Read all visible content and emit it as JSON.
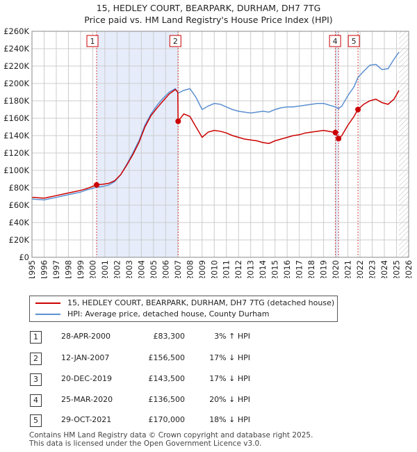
{
  "title_line1": "15, HEDLEY COURT, BEARPARK, DURHAM, DH7 7TG",
  "title_line2": "Price paid vs. HM Land Registry's House Price Index (HPI)",
  "chart_data": {
    "type": "line",
    "title": "15, HEDLEY COURT, BEARPARK, DURHAM, DH7 7TG",
    "subtitle": "Price paid vs. HM Land Registry's House Price Index (HPI)",
    "xlabel": "",
    "ylabel": "",
    "xlim": [
      1995,
      2026
    ],
    "ylim": [
      0,
      260000
    ],
    "x_ticks": [
      "1995",
      "1996",
      "1997",
      "1998",
      "1999",
      "2000",
      "2001",
      "2002",
      "2003",
      "2004",
      "2005",
      "2006",
      "2007",
      "2008",
      "2009",
      "2010",
      "2011",
      "2012",
      "2013",
      "2014",
      "2015",
      "2016",
      "2017",
      "2018",
      "2019",
      "2020",
      "2021",
      "2022",
      "2023",
      "2024",
      "2025",
      "2026"
    ],
    "y_ticks": [
      "£0",
      "£20K",
      "£40K",
      "£60K",
      "£80K",
      "£100K",
      "£120K",
      "£140K",
      "£160K",
      "£180K",
      "£200K",
      "£220K",
      "£240K",
      "£260K"
    ],
    "colors": {
      "property": "#cc0000",
      "hpi": "#5b8fd0",
      "shade": "#e6ecfa",
      "grid": "#cccccc",
      "vline": "#d04040"
    },
    "shaded_periods": [
      [
        2000.32,
        2007.03
      ],
      [
        2019.97,
        2020.23
      ]
    ],
    "future_hatch_from": 2025.2,
    "series": [
      {
        "name": "15, HEDLEY COURT, BEARPARK, DURHAM, DH7 7TG (detached house)",
        "points": [
          [
            1995.0,
            69000
          ],
          [
            1995.5,
            68500
          ],
          [
            1996.0,
            68000
          ],
          [
            1996.5,
            69500
          ],
          [
            1997.0,
            71000
          ],
          [
            1997.5,
            72500
          ],
          [
            1998.0,
            74000
          ],
          [
            1998.5,
            75500
          ],
          [
            1999.0,
            77000
          ],
          [
            1999.5,
            79000
          ],
          [
            2000.32,
            83300
          ],
          [
            2000.8,
            84000
          ],
          [
            2001.3,
            85000
          ],
          [
            2001.8,
            88000
          ],
          [
            2002.3,
            95000
          ],
          [
            2002.8,
            106000
          ],
          [
            2003.3,
            118000
          ],
          [
            2003.8,
            132000
          ],
          [
            2004.3,
            150000
          ],
          [
            2004.8,
            163000
          ],
          [
            2005.3,
            172000
          ],
          [
            2005.8,
            180000
          ],
          [
            2006.3,
            188000
          ],
          [
            2006.8,
            193000
          ],
          [
            2007.0,
            190000
          ],
          [
            2007.03,
            156500
          ],
          [
            2007.5,
            165000
          ],
          [
            2008.0,
            162000
          ],
          [
            2008.5,
            150000
          ],
          [
            2009.0,
            138000
          ],
          [
            2009.5,
            144000
          ],
          [
            2010.0,
            146000
          ],
          [
            2010.5,
            145000
          ],
          [
            2011.0,
            143000
          ],
          [
            2011.5,
            140000
          ],
          [
            2012.0,
            138000
          ],
          [
            2012.5,
            136000
          ],
          [
            2013.0,
            135000
          ],
          [
            2013.5,
            134000
          ],
          [
            2014.0,
            132000
          ],
          [
            2014.5,
            131000
          ],
          [
            2015.0,
            134000
          ],
          [
            2015.5,
            136000
          ],
          [
            2016.0,
            138000
          ],
          [
            2016.5,
            140000
          ],
          [
            2017.0,
            141000
          ],
          [
            2017.5,
            143000
          ],
          [
            2018.0,
            144000
          ],
          [
            2018.5,
            145000
          ],
          [
            2019.0,
            146000
          ],
          [
            2019.97,
            143500
          ],
          [
            2020.23,
            136500
          ],
          [
            2020.5,
            140000
          ],
          [
            2021.0,
            152000
          ],
          [
            2021.5,
            162000
          ],
          [
            2021.83,
            170000
          ],
          [
            2022.3,
            176000
          ],
          [
            2022.8,
            180000
          ],
          [
            2023.3,
            182000
          ],
          [
            2023.8,
            178000
          ],
          [
            2024.3,
            176000
          ],
          [
            2024.8,
            182000
          ],
          [
            2025.2,
            192000
          ]
        ]
      },
      {
        "name": "HPI: Average price, detached house, County Durham",
        "points": [
          [
            1995.0,
            67000
          ],
          [
            1995.5,
            66500
          ],
          [
            1996.0,
            66000
          ],
          [
            1996.5,
            67500
          ],
          [
            1997.0,
            69000
          ],
          [
            1997.5,
            70500
          ],
          [
            1998.0,
            72000
          ],
          [
            1998.5,
            73500
          ],
          [
            1999.0,
            75000
          ],
          [
            1999.5,
            77500
          ],
          [
            2000.32,
            80500
          ],
          [
            2000.8,
            81500
          ],
          [
            2001.3,
            83000
          ],
          [
            2001.8,
            87000
          ],
          [
            2002.3,
            95000
          ],
          [
            2002.8,
            107000
          ],
          [
            2003.3,
            120000
          ],
          [
            2003.8,
            134000
          ],
          [
            2004.3,
            152000
          ],
          [
            2004.8,
            165000
          ],
          [
            2005.3,
            175000
          ],
          [
            2005.8,
            183000
          ],
          [
            2006.3,
            190000
          ],
          [
            2006.8,
            194000
          ],
          [
            2007.03,
            189000
          ],
          [
            2007.5,
            192000
          ],
          [
            2008.0,
            194000
          ],
          [
            2008.5,
            184000
          ],
          [
            2009.0,
            170000
          ],
          [
            2009.5,
            174000
          ],
          [
            2010.0,
            177000
          ],
          [
            2010.5,
            176000
          ],
          [
            2011.0,
            173000
          ],
          [
            2011.5,
            170000
          ],
          [
            2012.0,
            168000
          ],
          [
            2012.5,
            167000
          ],
          [
            2013.0,
            166000
          ],
          [
            2013.5,
            167000
          ],
          [
            2014.0,
            168000
          ],
          [
            2014.5,
            167000
          ],
          [
            2015.0,
            170000
          ],
          [
            2015.5,
            172000
          ],
          [
            2016.0,
            173000
          ],
          [
            2016.5,
            173000
          ],
          [
            2017.0,
            174000
          ],
          [
            2017.5,
            175000
          ],
          [
            2018.0,
            176000
          ],
          [
            2018.5,
            177000
          ],
          [
            2019.0,
            177000
          ],
          [
            2019.97,
            173000
          ],
          [
            2020.23,
            171000
          ],
          [
            2020.5,
            174000
          ],
          [
            2021.0,
            186000
          ],
          [
            2021.5,
            196000
          ],
          [
            2021.83,
            207000
          ],
          [
            2022.3,
            214000
          ],
          [
            2022.8,
            221000
          ],
          [
            2023.3,
            222000
          ],
          [
            2023.8,
            216000
          ],
          [
            2024.3,
            217000
          ],
          [
            2024.8,
            228000
          ],
          [
            2025.2,
            236000
          ]
        ]
      }
    ],
    "markers": [
      {
        "label": "1",
        "x": 2000.32,
        "y": 83300
      },
      {
        "label": "2",
        "x": 2007.03,
        "y": 156500
      },
      {
        "label": "3",
        "x": 2019.97,
        "y": 143500
      },
      {
        "label": "4",
        "x": 2020.23,
        "y": 136500
      },
      {
        "label": "5",
        "x": 2021.83,
        "y": 170000
      }
    ]
  },
  "legend": {
    "property_label": "15, HEDLEY COURT, BEARPARK, DURHAM, DH7 7TG (detached house)",
    "hpi_label": "HPI: Average price, detached house, County Durham"
  },
  "transactions": [
    {
      "num": "1",
      "date": "28-APR-2000",
      "price": "£83,300",
      "hpi": "3% ↑ HPI"
    },
    {
      "num": "2",
      "date": "12-JAN-2007",
      "price": "£156,500",
      "hpi": "17% ↓ HPI"
    },
    {
      "num": "3",
      "date": "20-DEC-2019",
      "price": "£143,500",
      "hpi": "17% ↓ HPI"
    },
    {
      "num": "4",
      "date": "25-MAR-2020",
      "price": "£136,500",
      "hpi": "20% ↓ HPI"
    },
    {
      "num": "5",
      "date": "29-OCT-2021",
      "price": "£170,000",
      "hpi": "18% ↓ HPI"
    }
  ],
  "footer_line1": "Contains HM Land Registry data © Crown copyright and database right 2025.",
  "footer_line2": "This data is licensed under the Open Government Licence v3.0."
}
